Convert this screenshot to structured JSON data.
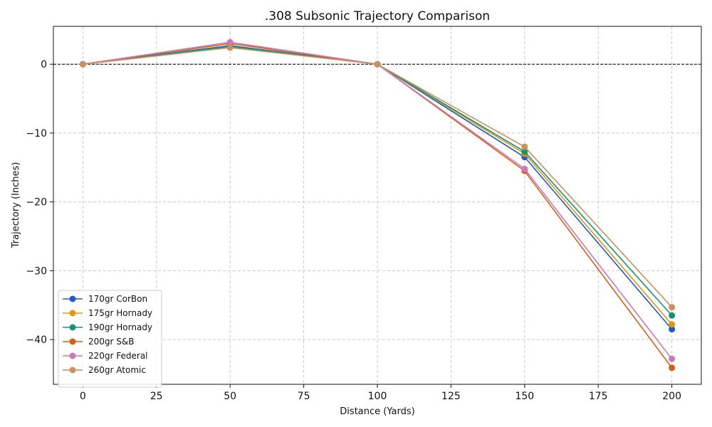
{
  "chart_data": {
    "type": "line",
    "title": ".308 Subsonic Trajectory Comparison",
    "xlabel": "Distance (Yards)",
    "ylabel": "Trajectory (Inches)",
    "x": [
      0,
      50,
      100,
      150,
      200
    ],
    "xlim": [
      -10,
      210
    ],
    "ylim": [
      -46.5,
      5.5
    ],
    "xticks": [
      0,
      25,
      50,
      75,
      100,
      125,
      150,
      175,
      200
    ],
    "yticks": [
      0,
      -10,
      -20,
      -30,
      -40
    ],
    "ytick_labels": [
      "0",
      "−10",
      "−20",
      "−30",
      "−40"
    ],
    "grid": true,
    "reference_line": {
      "y": 0,
      "style": "dashed",
      "color": "#000000"
    },
    "legend_position": "lower-left",
    "series": [
      {
        "name": "170gr CorBon",
        "color": "#1f5bc7",
        "values": [
          0,
          2.7,
          0,
          -13.5,
          -38.5
        ]
      },
      {
        "name": "175gr Hornady",
        "color": "#e69512",
        "values": [
          0,
          2.5,
          0,
          -13.0,
          -37.8
        ]
      },
      {
        "name": "190gr Hornady",
        "color": "#109672",
        "values": [
          0,
          2.6,
          0,
          -12.7,
          -36.5
        ]
      },
      {
        "name": "200gr S&B",
        "color": "#d95f0e",
        "values": [
          0,
          3.0,
          0,
          -15.5,
          -44.1
        ]
      },
      {
        "name": "220gr Federal",
        "color": "#cc78bc",
        "values": [
          0,
          3.2,
          0,
          -15.2,
          -42.8
        ]
      },
      {
        "name": "260gr Atomic",
        "color": "#c8915e",
        "values": [
          0,
          2.4,
          0,
          -12.0,
          -35.3
        ]
      }
    ]
  }
}
